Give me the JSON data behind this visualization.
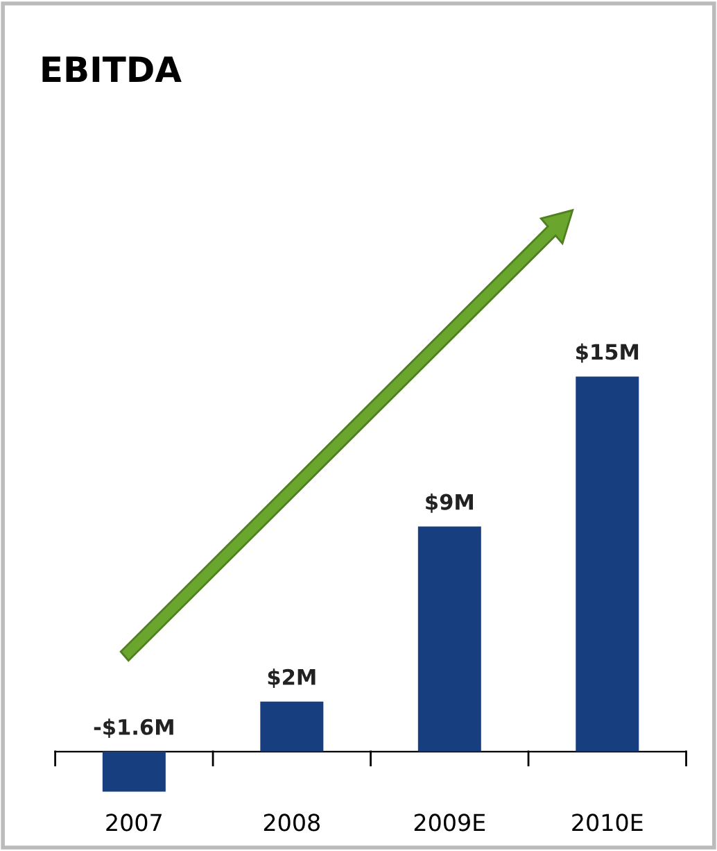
{
  "chart_data": {
    "type": "bar",
    "title": "EBITDA",
    "categories": [
      "2007",
      "2008",
      "2009E",
      "2010E"
    ],
    "values": [
      -1.6,
      2,
      9,
      15
    ],
    "value_labels": [
      "-$1.6M",
      "$2M",
      "$9M",
      "$15M"
    ],
    "color": "#173f7f",
    "tick_labels": "x",
    "grid": false,
    "legend": false
  }
}
